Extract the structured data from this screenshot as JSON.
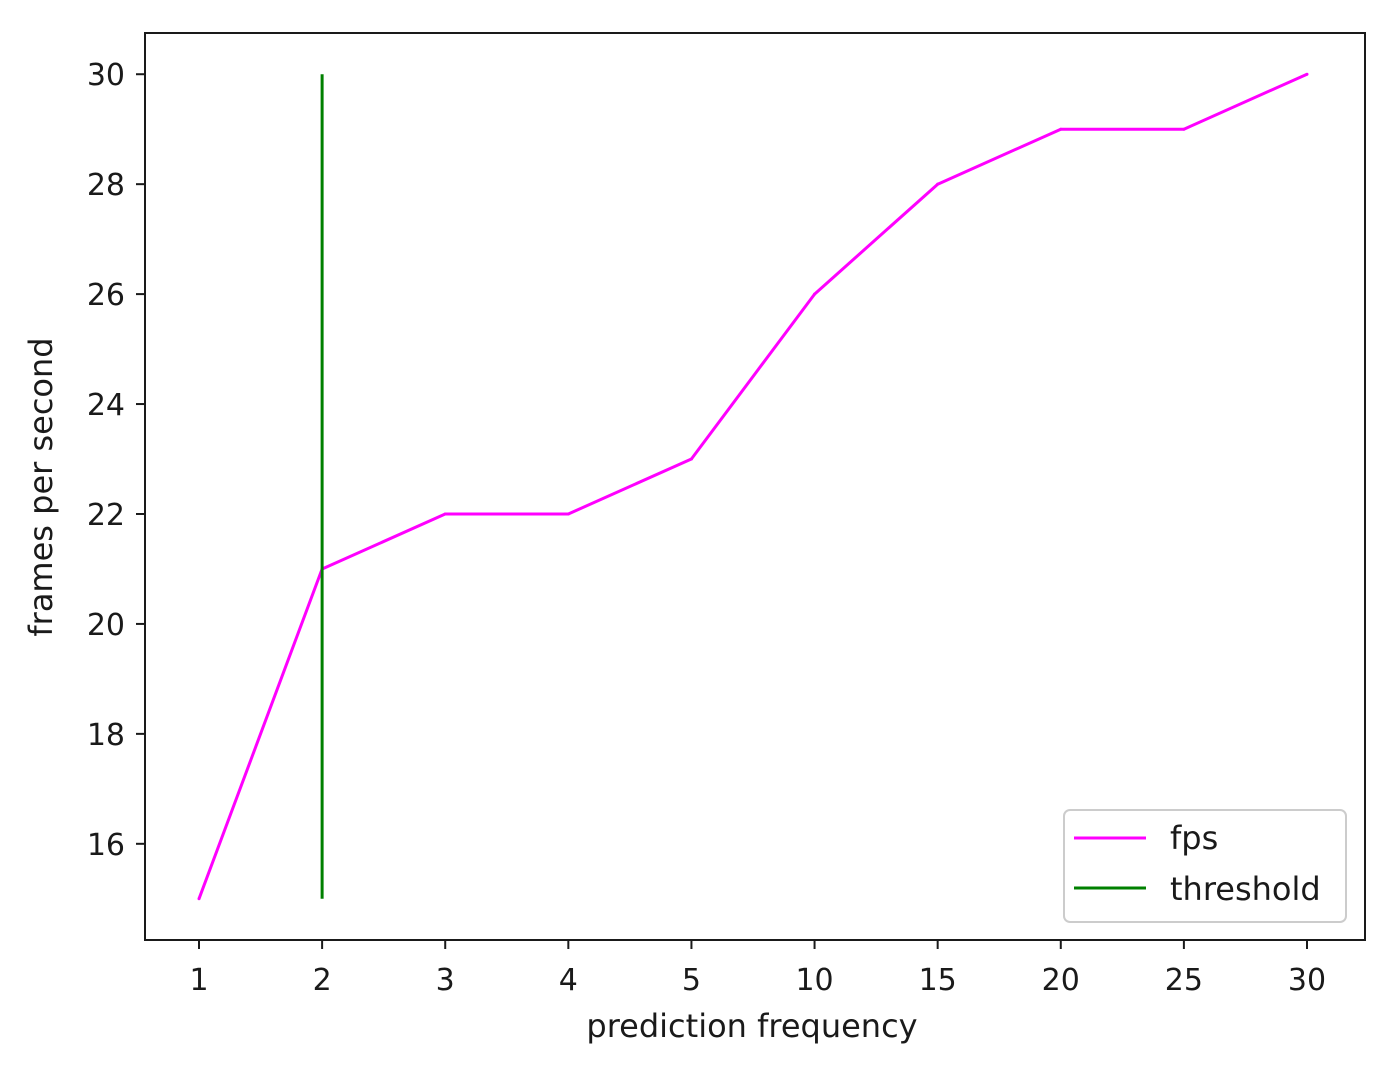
{
  "chart_data": {
    "type": "line",
    "categories": [
      "1",
      "2",
      "3",
      "4",
      "5",
      "10",
      "15",
      "20",
      "25",
      "30"
    ],
    "xlabel": "prediction frequency",
    "ylabel": "frames per second",
    "ylim": [
      14.25,
      30.75
    ],
    "yticks": [
      16,
      18,
      20,
      22,
      24,
      26,
      28,
      30
    ],
    "grid": false,
    "legend_position": "lower-right",
    "series": [
      {
        "name": "fps",
        "color": "#ff00ff",
        "values": [
          15,
          21,
          22,
          22,
          23,
          26,
          28,
          29,
          29,
          30
        ]
      },
      {
        "name": "threshold",
        "color": "#008000",
        "kind": "vertical-line",
        "x_category": "2",
        "y_range": [
          15,
          30
        ]
      }
    ]
  }
}
